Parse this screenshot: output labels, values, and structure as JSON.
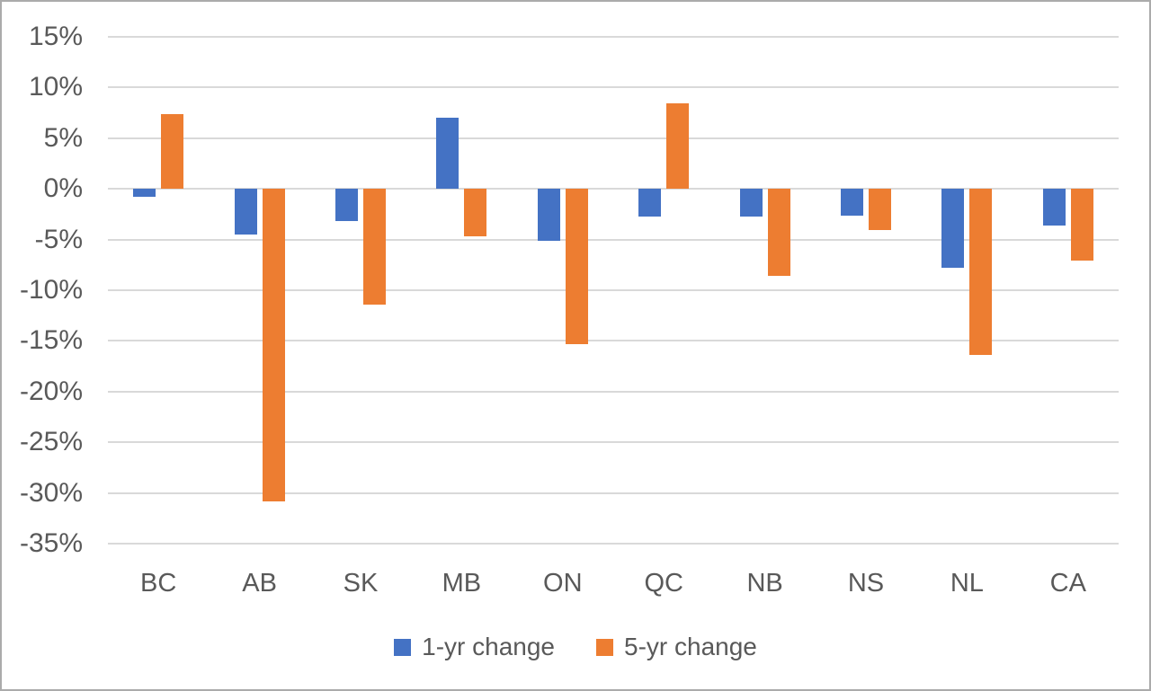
{
  "chart_data": {
    "type": "bar",
    "title": "",
    "categories": [
      "BC",
      "AB",
      "SK",
      "MB",
      "ON",
      "QC",
      "NB",
      "NS",
      "NL",
      "CA"
    ],
    "series": [
      {
        "name": "1-yr change",
        "color": "#4472C4",
        "values": [
          -0.8,
          -4.5,
          -3.2,
          7.0,
          -5.1,
          -2.7,
          -2.7,
          -2.6,
          -7.8,
          -3.6
        ]
      },
      {
        "name": "5-yr change",
        "color": "#ED7D31",
        "values": [
          7.4,
          -30.8,
          -11.4,
          -4.7,
          -15.3,
          8.4,
          -8.6,
          -4.1,
          -16.4,
          -7.1
        ]
      }
    ],
    "ylim": [
      -35,
      15
    ],
    "ytick_step": 5,
    "ytick_labels": [
      "15%",
      "10%",
      "5%",
      "0%",
      "-5%",
      "-10%",
      "-15%",
      "-20%",
      "-25%",
      "-30%",
      "-35%"
    ],
    "unit": "percent",
    "grid": true,
    "legend_position": "bottom",
    "xlabel": "",
    "ylabel": ""
  },
  "colors": {
    "background": "#FFFFFF",
    "frame_border": "#ABABAB",
    "gridline": "#D9D9D9",
    "text": "#595959",
    "series_blue": "#4472C4",
    "series_orange": "#ED7D31"
  }
}
